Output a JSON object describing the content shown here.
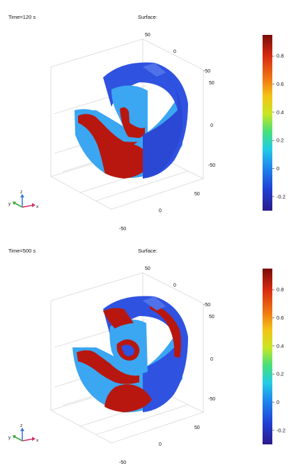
{
  "chart_data": [
    {
      "type": "surface",
      "title": "Surface:",
      "time_label": "Time=120 s",
      "axis_ticks": {
        "z_top": [
          "50",
          "0",
          "-50"
        ],
        "y_right": [
          "50",
          "0",
          "-50"
        ],
        "x_bottom": [
          "50",
          "0",
          "-50"
        ]
      },
      "colorbar": {
        "min": -0.3,
        "max": 0.95,
        "ticks": [
          "0.8",
          "0.6",
          "0.4",
          "0.2",
          "0",
          "-0.2"
        ],
        "tick_values": [
          0.8,
          0.6,
          0.4,
          0.2,
          0,
          -0.2
        ]
      },
      "triad": {
        "x": "x",
        "y": "y",
        "z": "z"
      }
    },
    {
      "type": "surface",
      "title": "Surface:",
      "time_label": "Time=500 s",
      "axis_ticks": {
        "z_top": [
          "50",
          "0",
          "-50"
        ],
        "y_right": [
          "50",
          "0",
          "-50"
        ],
        "x_bottom": [
          "50",
          "0",
          "-50"
        ]
      },
      "colorbar": {
        "min": -0.3,
        "max": 0.95,
        "ticks": [
          "0.8",
          "0.6",
          "0.4",
          "0.2",
          "0",
          "-0.2"
        ],
        "tick_values": [
          0.8,
          0.6,
          0.4,
          0.2,
          0,
          -0.2
        ]
      },
      "triad": {
        "x": "x",
        "y": "y",
        "z": "z"
      }
    }
  ],
  "colors": {
    "colormap": [
      "#2b1a8a",
      "#1f3fd4",
      "#1e88ee",
      "#22cce6",
      "#46e07a",
      "#c8e623",
      "#f4c414",
      "#f07812",
      "#d72a10",
      "#7a0c08"
    ],
    "surface_blue": "#2f52e0",
    "surface_cyan": "#3ba6f2",
    "surface_red": "#b8170f",
    "grid": "#c8c8c8"
  }
}
